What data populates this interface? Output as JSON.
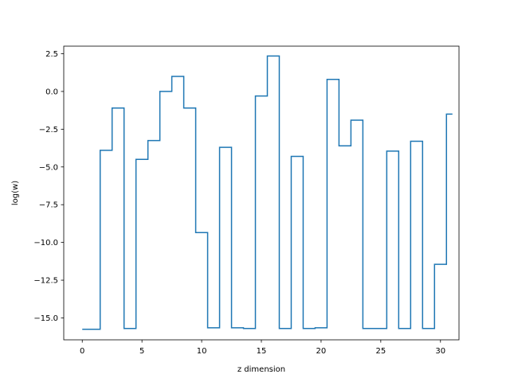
{
  "chart_data": {
    "type": "line",
    "drawstyle": "steps-mid",
    "xlabel": "z dimension",
    "ylabel": "log(w)",
    "xlim": [
      -1.55,
      31.55
    ],
    "ylim": [
      -16.45,
      3.0
    ],
    "xticks": [
      0,
      5,
      10,
      15,
      20,
      25,
      30
    ],
    "xtick_labels": [
      "0",
      "5",
      "10",
      "15",
      "20",
      "25",
      "30"
    ],
    "yticks": [
      2.5,
      0.0,
      -2.5,
      -5.0,
      -7.5,
      -10.0,
      -12.5,
      -15.0
    ],
    "ytick_labels": [
      "2.5",
      "0.0",
      "−2.5",
      "−5.0",
      "−7.5",
      "−10.0",
      "−12.5",
      "−15.0"
    ],
    "grid": false,
    "legend": "none",
    "series": [
      {
        "color": "#1f77b4",
        "x": [
          0,
          1,
          2,
          3,
          4,
          5,
          6,
          7,
          8,
          9,
          10,
          11,
          12,
          13,
          14,
          15,
          16,
          17,
          18,
          19,
          20,
          21,
          22,
          23,
          24,
          25,
          26,
          27,
          28,
          29,
          30,
          31
        ],
        "values": [
          -15.75,
          -15.75,
          -3.9,
          -1.1,
          -15.7,
          -4.5,
          -3.25,
          0.0,
          1.0,
          -1.1,
          -9.35,
          -15.65,
          -3.7,
          -15.65,
          -15.7,
          -0.3,
          2.35,
          -15.7,
          -4.3,
          -15.7,
          -15.65,
          0.8,
          -3.6,
          -1.9,
          -15.7,
          -15.7,
          -3.95,
          -15.7,
          -3.3,
          -15.7,
          -11.45,
          -1.5
        ]
      }
    ]
  }
}
